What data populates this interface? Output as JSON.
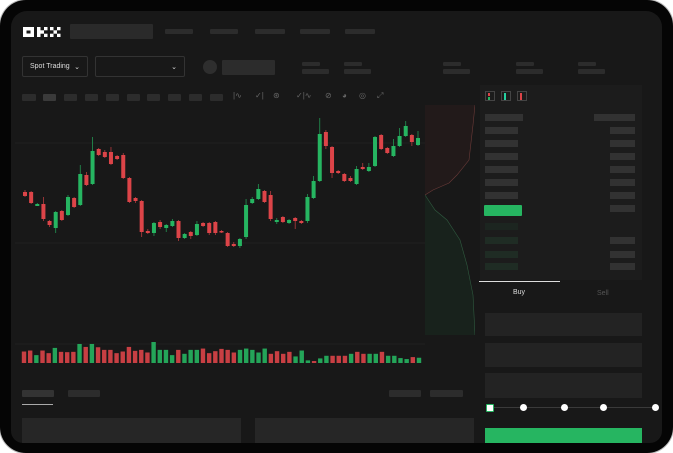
{
  "header": {
    "logo": "OKX"
  },
  "toolbar": {
    "market_selector": "Spot Trading"
  },
  "order_form": {
    "buy_tab": "Buy",
    "sell_tab": "Sell",
    "active_tab": "Buy",
    "leverage_slider_value": 0
  },
  "colors": {
    "up": "#26b561",
    "down": "#dc4448",
    "background": "#181818",
    "panel": "#1c1c1c"
  },
  "chart_data": {
    "type": "candlestick",
    "candles": [
      [
        97,
        99,
        92,
        93
      ],
      [
        97,
        98,
        85,
        86
      ],
      [
        83,
        86,
        83,
        85
      ],
      [
        85,
        92,
        68,
        70
      ],
      [
        68,
        69,
        62,
        64
      ],
      [
        61,
        78,
        56,
        77
      ],
      [
        78,
        79,
        68,
        69
      ],
      [
        74,
        94,
        73,
        92
      ],
      [
        91,
        92,
        81,
        82
      ],
      [
        84,
        124,
        83,
        115
      ],
      [
        114,
        117,
        103,
        104
      ],
      [
        105,
        152,
        104,
        138
      ],
      [
        140,
        141,
        133,
        134
      ],
      [
        137,
        139,
        131,
        132
      ],
      [
        137,
        142,
        124,
        125
      ],
      [
        133,
        134,
        129,
        130
      ],
      [
        134,
        136,
        110,
        111
      ],
      [
        111,
        112,
        86,
        87
      ],
      [
        91,
        92,
        86,
        88
      ],
      [
        88,
        89,
        52,
        57
      ],
      [
        58,
        60,
        55,
        56
      ],
      [
        56,
        67,
        53,
        66
      ],
      [
        67,
        69,
        60,
        62
      ],
      [
        61,
        65,
        57,
        64
      ],
      [
        63,
        70,
        62,
        68
      ],
      [
        68,
        69,
        48,
        51
      ],
      [
        51,
        56,
        50,
        55
      ],
      [
        57,
        58,
        50,
        53
      ],
      [
        54,
        68,
        53,
        65
      ],
      [
        66,
        67,
        62,
        63
      ],
      [
        66,
        67,
        54,
        56
      ],
      [
        67,
        68,
        54,
        56
      ],
      [
        58,
        59,
        56,
        57
      ],
      [
        56,
        57,
        42,
        43
      ],
      [
        45,
        47,
        42,
        43
      ],
      [
        43,
        51,
        41,
        50
      ],
      [
        52,
        90,
        50,
        84
      ],
      [
        86,
        92,
        85,
        90
      ],
      [
        90,
        105,
        89,
        100
      ],
      [
        98,
        99,
        86,
        87
      ],
      [
        94,
        98,
        68,
        70
      ],
      [
        67,
        71,
        65,
        69
      ],
      [
        72,
        73,
        66,
        67
      ],
      [
        66,
        70,
        65,
        69
      ],
      [
        71,
        72,
        60,
        68
      ],
      [
        68,
        69,
        65,
        66
      ],
      [
        68,
        95,
        66,
        92
      ],
      [
        91,
        113,
        90,
        108
      ],
      [
        108,
        171,
        107,
        155
      ],
      [
        157,
        159,
        140,
        143
      ],
      [
        142,
        143,
        111,
        116
      ],
      [
        118,
        119,
        115,
        116
      ],
      [
        115,
        116,
        107,
        108
      ],
      [
        111,
        113,
        107,
        108
      ],
      [
        105,
        123,
        104,
        120
      ],
      [
        122,
        126,
        119,
        120
      ],
      [
        118,
        126,
        117,
        122
      ],
      [
        123,
        153,
        122,
        152
      ],
      [
        154,
        155,
        139,
        140
      ],
      [
        141,
        142,
        135,
        136
      ],
      [
        133,
        150,
        132,
        143
      ],
      [
        143,
        161,
        142,
        153
      ],
      [
        153,
        168,
        152,
        163
      ],
      [
        154,
        155,
        143,
        147
      ],
      [
        144,
        158,
        143,
        151
      ]
    ],
    "volumes": [
      35,
      38,
      24,
      38,
      30,
      46,
      34,
      33,
      34,
      58,
      49,
      58,
      48,
      40,
      40,
      30,
      35,
      49,
      37,
      40,
      32,
      64,
      40,
      40,
      24,
      40,
      28,
      40,
      40,
      44,
      30,
      36,
      43,
      40,
      32,
      40,
      44,
      40,
      32,
      44,
      28,
      36,
      28,
      34,
      20,
      38,
      8,
      6,
      14,
      22,
      22,
      22,
      22,
      28,
      34,
      28,
      28,
      28,
      34,
      22,
      22,
      15,
      12,
      18,
      16
    ],
    "volume_direction": [
      "down",
      "down",
      "up",
      "down",
      "down",
      "up",
      "down",
      "down",
      "down",
      "up",
      "down",
      "up",
      "down",
      "down",
      "down",
      "down",
      "down",
      "down",
      "down",
      "down",
      "down",
      "up",
      "up",
      "up",
      "up",
      "down",
      "up",
      "up",
      "up",
      "down",
      "down",
      "down",
      "down",
      "down",
      "down",
      "up",
      "up",
      "up",
      "up",
      "up",
      "down",
      "down",
      "down",
      "down",
      "up",
      "up",
      "up",
      "down",
      "up",
      "up",
      "down",
      "down",
      "down",
      "up",
      "down",
      "down",
      "up",
      "up",
      "down",
      "up",
      "up",
      "up",
      "up",
      "down",
      "up"
    ],
    "grid": true
  }
}
